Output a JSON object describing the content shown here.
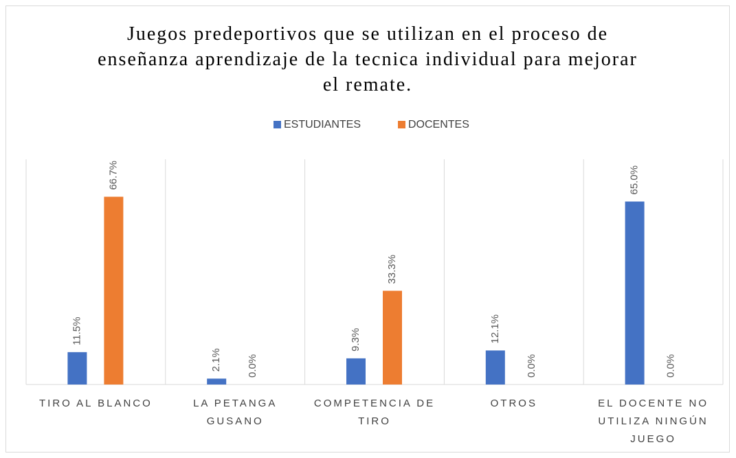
{
  "chart_data": {
    "type": "bar",
    "title": "Juegos predeportivos que se utilizan en el proceso de enseñanza aprendizaje de la tecnica individual para mejorar el remate.",
    "categories": [
      "TIRO AL BLANCO",
      "LA PETANGA GUSANO",
      "COMPETENCIA DE TIRO",
      "OTROS",
      "EL DOCENTE NO UTILIZA NINGÚN JUEGO"
    ],
    "series": [
      {
        "name": "ESTUDIANTES",
        "color": "#4472c4",
        "values": [
          11.5,
          2.1,
          9.3,
          12.1,
          65.0
        ],
        "value_labels": [
          "11.5%",
          "2.1%",
          "9.3%",
          "12.1%",
          "65.0%"
        ]
      },
      {
        "name": "DOCENTES",
        "color": "#ed7d31",
        "values": [
          66.7,
          0,
          33.3,
          0,
          0
        ],
        "value_labels": [
          "66.7%",
          "0.0%",
          "33.3%",
          "0.0%",
          "0.0%"
        ]
      }
    ],
    "ylim": [
      0,
      80
    ],
    "legend": "top",
    "grid": false
  }
}
